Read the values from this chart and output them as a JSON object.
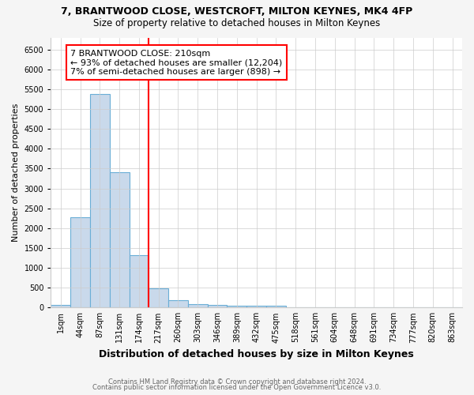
{
  "title1": "7, BRANTWOOD CLOSE, WESTCROFT, MILTON KEYNES, MK4 4FP",
  "title2": "Size of property relative to detached houses in Milton Keynes",
  "xlabel": "Distribution of detached houses by size in Milton Keynes",
  "ylabel": "Number of detached properties",
  "bin_labels": [
    "1sqm",
    "44sqm",
    "87sqm",
    "131sqm",
    "174sqm",
    "217sqm",
    "260sqm",
    "303sqm",
    "346sqm",
    "389sqm",
    "432sqm",
    "475sqm",
    "518sqm",
    "561sqm",
    "604sqm",
    "648sqm",
    "691sqm",
    "734sqm",
    "777sqm",
    "820sqm",
    "863sqm"
  ],
  "bar_values": [
    75,
    2275,
    5375,
    3400,
    1310,
    475,
    190,
    90,
    75,
    50,
    50,
    50,
    0,
    0,
    0,
    0,
    0,
    0,
    0,
    0,
    0
  ],
  "bar_color": "#c9d9eb",
  "bar_edge_color": "#6aaed6",
  "vline_x_index": 5,
  "vline_color": "red",
  "annotation_line1": "7 BRANTWOOD CLOSE: 210sqm",
  "annotation_line2": "← 93% of detached houses are smaller (12,204)",
  "annotation_line3": "7% of semi-detached houses are larger (898) →",
  "annotation_box_color": "white",
  "annotation_box_edgecolor": "red",
  "ylim": [
    0,
    6800
  ],
  "yticks": [
    0,
    500,
    1000,
    1500,
    2000,
    2500,
    3000,
    3500,
    4000,
    4500,
    5000,
    5500,
    6000,
    6500
  ],
  "footer1": "Contains HM Land Registry data © Crown copyright and database right 2024.",
  "footer2": "Contains public sector information licensed under the Open Government Licence v3.0.",
  "bg_color": "#f5f5f5",
  "plot_bg_color": "#ffffff",
  "title1_fontsize": 9,
  "title2_fontsize": 8.5,
  "xlabel_fontsize": 9,
  "ylabel_fontsize": 8,
  "tick_fontsize": 7,
  "annotation_fontsize": 8,
  "footer_fontsize": 6
}
